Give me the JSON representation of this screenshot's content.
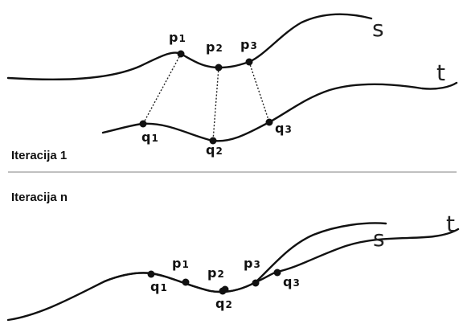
{
  "panels": [
    {
      "label": "Iteracija 1",
      "curves": [
        "s",
        "t"
      ],
      "points_s": [
        {
          "base": "p",
          "index": "1"
        },
        {
          "base": "p",
          "index": "2"
        },
        {
          "base": "p",
          "index": "3"
        }
      ],
      "points_t": [
        {
          "base": "q",
          "index": "1"
        },
        {
          "base": "q",
          "index": "2"
        },
        {
          "base": "q",
          "index": "3"
        }
      ]
    },
    {
      "label": "Iteracija n",
      "curves": [
        "s",
        "t"
      ],
      "points_s": [
        {
          "base": "p",
          "index": "1"
        },
        {
          "base": "p",
          "index": "2"
        },
        {
          "base": "p",
          "index": "3"
        }
      ],
      "points_t": [
        {
          "base": "q",
          "index": "1"
        },
        {
          "base": "q",
          "index": "2"
        },
        {
          "base": "q",
          "index": "3"
        }
      ]
    }
  ]
}
